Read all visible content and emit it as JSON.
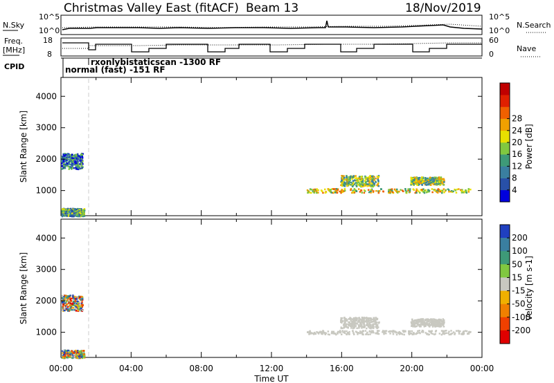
{
  "header": {
    "station": "Christmas Valley East (fitACF)",
    "beam": "Beam 13",
    "date": "18/Nov/2019"
  },
  "top_panel": {
    "left_label": "N.Sky",
    "right_label": "N.Search",
    "left_ticks": [
      "10^5",
      "10^0"
    ],
    "right_ticks": [
      "10^5",
      "10^0"
    ]
  },
  "freq_panel": {
    "left_label_1": "Freq.",
    "left_label_2": "[MHz]",
    "right_label": "Nave",
    "left_ticks": [
      "18",
      "8"
    ],
    "right_ticks": [
      "60",
      "0"
    ]
  },
  "cpid": {
    "label": "CPID",
    "mode_1": "rxonlybistaticscan -1300 RF",
    "mode_2": "normal (fast) -151 RF"
  },
  "chart_data": [
    {
      "type": "scatter",
      "title": "Power",
      "xlabel": "Time UT",
      "ylabel": "Slant Range [km]",
      "xlim": [
        0,
        24
      ],
      "ylim": [
        200,
        4600
      ],
      "x_ticks": [
        "00:00",
        "04:00",
        "08:00",
        "12:00",
        "16:00",
        "20:00",
        "00:00"
      ],
      "y_ticks": [
        "1000",
        "2000",
        "3000",
        "4000"
      ],
      "colorbar": {
        "label": "Power [dB]",
        "ticks": [
          "4",
          "8",
          "12",
          "16",
          "20",
          "24",
          "28"
        ],
        "colors": [
          "#0000dd",
          "#2850a8",
          "#3a7fa0",
          "#3e9a78",
          "#80c840",
          "#e8e000",
          "#f0a000",
          "#f06000",
          "#e02000",
          "#c00000"
        ]
      },
      "echo_regions": [
        {
          "t_start": 0.0,
          "t_end": 1.2,
          "r_start": 1700,
          "r_end": 2200,
          "level": "8"
        },
        {
          "t_start": 0.0,
          "t_end": 1.3,
          "r_start": 200,
          "r_end": 450,
          "level": "12"
        },
        {
          "t_start": 14.0,
          "t_end": 23.3,
          "r_start": 950,
          "r_end": 1080,
          "level": "20"
        },
        {
          "t_start": 15.9,
          "t_end": 18.1,
          "r_start": 1150,
          "r_end": 1500,
          "level": "16"
        },
        {
          "t_start": 19.9,
          "t_end": 21.8,
          "r_start": 1200,
          "r_end": 1450,
          "level": "16"
        }
      ]
    },
    {
      "type": "scatter",
      "title": "Velocity",
      "xlabel": "Time UT",
      "ylabel": "Slant Range [km]",
      "xlim": [
        0,
        24
      ],
      "ylim": [
        200,
        4600
      ],
      "x_ticks": [
        "00:00",
        "04:00",
        "08:00",
        "12:00",
        "16:00",
        "20:00",
        "00:00"
      ],
      "y_ticks": [
        "1000",
        "2000",
        "3000",
        "4000"
      ],
      "colorbar": {
        "label": "Velocity [m s-1]",
        "ticks": [
          "200",
          "100",
          "50",
          "15",
          "-15",
          "-50",
          "-100",
          "-200"
        ],
        "colors": [
          "#2040c0",
          "#3a7fa0",
          "#3e9a78",
          "#80c840",
          "#c8c8c0",
          "#f0b000",
          "#f08000",
          "#f04000",
          "#e00000"
        ]
      },
      "echo_regions": [
        {
          "t_start": 0.0,
          "t_end": 1.2,
          "r_start": 1700,
          "r_end": 2200,
          "level": "mixed"
        },
        {
          "t_start": 0.0,
          "t_end": 1.3,
          "r_start": 200,
          "r_end": 450,
          "level": "mixed"
        },
        {
          "t_start": 14.0,
          "t_end": 23.3,
          "r_start": 950,
          "r_end": 1080,
          "level": "ground"
        },
        {
          "t_start": 15.9,
          "t_end": 18.1,
          "r_start": 1150,
          "r_end": 1500,
          "level": "ground"
        },
        {
          "t_start": 19.9,
          "t_end": 21.8,
          "r_start": 1200,
          "r_end": 1450,
          "level": "ground"
        }
      ]
    }
  ]
}
